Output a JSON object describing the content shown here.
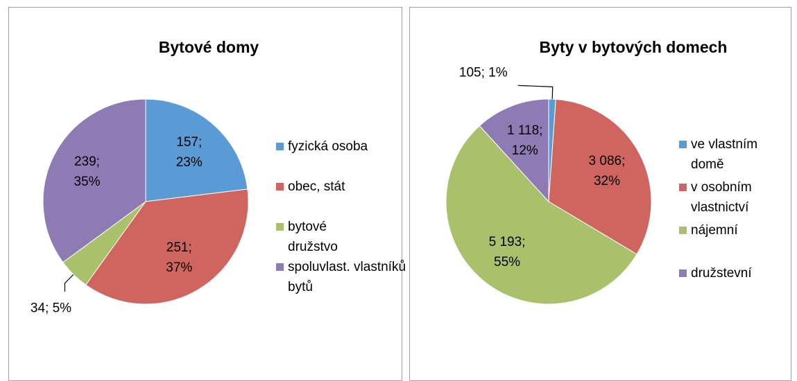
{
  "chart_data": [
    {
      "type": "pie",
      "title": "Bytové domy",
      "categories": [
        "fyzická osoba",
        "obec, stát",
        "bytové družstvo",
        "spoluvlast. vlastníků bytů"
      ],
      "values": [
        157,
        251,
        34,
        239
      ],
      "value_labels": [
        "157; 23%",
        "251; 37%",
        "34; 5%",
        "239; 35%"
      ],
      "colors": [
        "#5b9bd5",
        "#d0655f",
        "#a9c16a",
        "#8f7bb4"
      ],
      "legend": "right"
    },
    {
      "type": "pie",
      "title": "Byty v bytových domech",
      "categories": [
        "ve vlastním domě",
        "v osobním vlastnictví",
        "nájemní",
        "družstevní"
      ],
      "values": [
        105,
        3086,
        5193,
        1118
      ],
      "value_labels": [
        "105; 1%",
        "3 086; 32%",
        "5 193; 55%",
        "1 118; 12%"
      ],
      "colors": [
        "#5b9bd5",
        "#d0655f",
        "#a9c16a",
        "#8f7bb4"
      ],
      "legend": "right"
    }
  ]
}
